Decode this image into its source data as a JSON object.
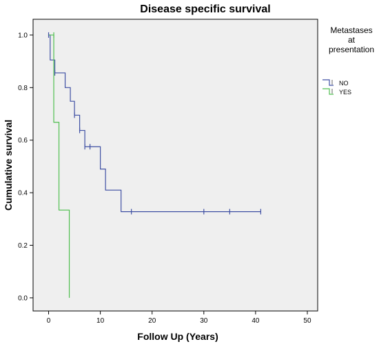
{
  "chart_data": {
    "type": "line",
    "title": "Disease specific survival",
    "xlabel": "Follow Up (Years)",
    "ylabel": "Cumulative survival",
    "xlim": [
      -3,
      52
    ],
    "ylim": [
      -0.05,
      1.06
    ],
    "xticks": [
      "0",
      "10",
      "20",
      "30",
      "40",
      "50"
    ],
    "yticks": [
      "0.0",
      "0.2",
      "0.4",
      "0.6",
      "0.8",
      "1.0"
    ],
    "grid": false,
    "background": "#efefef",
    "legend": {
      "title_lines": [
        "Metastases",
        "at",
        "presentation"
      ],
      "placement": "right"
    },
    "series": [
      {
        "name": "NO",
        "color": "#3e4fa3",
        "steps": [
          [
            0,
            1.0
          ],
          [
            0.3,
            0.905
          ],
          [
            1.2,
            0.856
          ],
          [
            3.2,
            0.8
          ],
          [
            4.2,
            0.748
          ],
          [
            5,
            0.695
          ],
          [
            6,
            0.637
          ],
          [
            7,
            0.575
          ],
          [
            10,
            0.49
          ],
          [
            11,
            0.41
          ],
          [
            14,
            0.328
          ],
          [
            41,
            0.328
          ]
        ],
        "censored": [
          [
            0,
            1.0
          ],
          [
            1.2,
            0.856
          ],
          [
            5,
            0.695
          ],
          [
            6,
            0.637
          ],
          [
            7,
            0.575
          ],
          [
            8,
            0.575
          ],
          [
            16,
            0.328
          ],
          [
            30,
            0.328
          ],
          [
            35,
            0.328
          ],
          [
            41,
            0.328
          ]
        ]
      },
      {
        "name": "YES",
        "color": "#4fbf4f",
        "steps": [
          [
            0,
            1.0
          ],
          [
            1,
            0.668
          ],
          [
            2,
            0.334
          ],
          [
            4,
            0.0
          ]
        ],
        "censored": [
          [
            1,
            1.0
          ]
        ]
      }
    ]
  }
}
